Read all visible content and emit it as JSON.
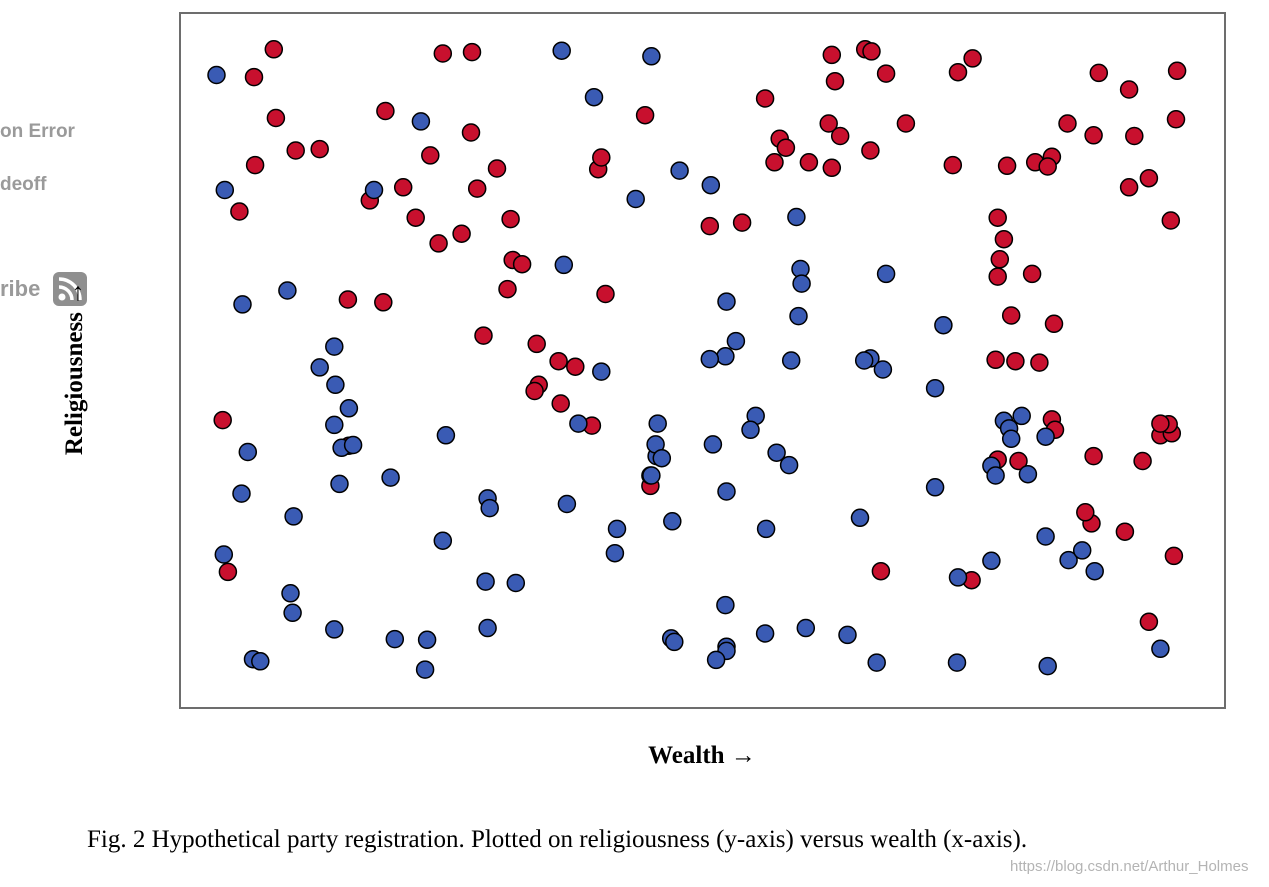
{
  "sidebar_fragments": {
    "line1": "on Error",
    "line2": "deoff",
    "line3": "ribe"
  },
  "caption": "Fig. 2 Hypothetical party registration. Plotted on religiousness (y-axis) versus wealth (x-axis).",
  "watermark": "https://blog.csdn.net/Arthur_Holmes",
  "colors": {
    "red": "#c8102e",
    "blue": "#3a5bb4",
    "edge": "#000000",
    "frame": "#6d6d6d"
  },
  "chart_data": {
    "type": "scatter",
    "title": "",
    "xlabel": "Wealth →",
    "ylabel": "Religiousness →",
    "xlim": [
      0,
      1
    ],
    "ylim": [
      0,
      1
    ],
    "grid": false,
    "legend": "none",
    "ticks": "none",
    "series": [
      {
        "color": "#c8102e",
        "points": [
          [
            0.089,
            0.949
          ],
          [
            0.251,
            0.943
          ],
          [
            0.279,
            0.945
          ],
          [
            0.07,
            0.909
          ],
          [
            0.091,
            0.85
          ],
          [
            0.11,
            0.803
          ],
          [
            0.133,
            0.805
          ],
          [
            0.071,
            0.782
          ],
          [
            0.056,
            0.715
          ],
          [
            0.196,
            0.86
          ],
          [
            0.239,
            0.796
          ],
          [
            0.278,
            0.829
          ],
          [
            0.303,
            0.777
          ],
          [
            0.213,
            0.75
          ],
          [
            0.181,
            0.731
          ],
          [
            0.225,
            0.706
          ],
          [
            0.284,
            0.748
          ],
          [
            0.269,
            0.683
          ],
          [
            0.316,
            0.704
          ],
          [
            0.247,
            0.669
          ],
          [
            0.318,
            0.645
          ],
          [
            0.327,
            0.639
          ],
          [
            0.313,
            0.603
          ],
          [
            0.16,
            0.588
          ],
          [
            0.194,
            0.584
          ],
          [
            0.29,
            0.536
          ],
          [
            0.341,
            0.524
          ],
          [
            0.362,
            0.499
          ],
          [
            0.378,
            0.491
          ],
          [
            0.343,
            0.465
          ],
          [
            0.339,
            0.456
          ],
          [
            0.364,
            0.438
          ],
          [
            0.394,
            0.406
          ],
          [
            0.04,
            0.414
          ],
          [
            0.161,
            0.377
          ],
          [
            0.045,
            0.195
          ],
          [
            0.4,
            0.776
          ],
          [
            0.403,
            0.793
          ],
          [
            0.407,
            0.596
          ],
          [
            0.445,
            0.854
          ],
          [
            0.507,
            0.694
          ],
          [
            0.538,
            0.699
          ],
          [
            0.56,
            0.878
          ],
          [
            0.574,
            0.82
          ],
          [
            0.58,
            0.807
          ],
          [
            0.569,
            0.786
          ],
          [
            0.602,
            0.786
          ],
          [
            0.624,
            0.941
          ],
          [
            0.627,
            0.903
          ],
          [
            0.621,
            0.842
          ],
          [
            0.632,
            0.824
          ],
          [
            0.624,
            0.778
          ],
          [
            0.656,
            0.949
          ],
          [
            0.662,
            0.946
          ],
          [
            0.676,
            0.914
          ],
          [
            0.661,
            0.803
          ],
          [
            0.695,
            0.842
          ],
          [
            0.745,
            0.916
          ],
          [
            0.759,
            0.936
          ],
          [
            0.74,
            0.782
          ],
          [
            0.792,
            0.781
          ],
          [
            0.819,
            0.786
          ],
          [
            0.835,
            0.794
          ],
          [
            0.831,
            0.78
          ],
          [
            0.85,
            0.842
          ],
          [
            0.875,
            0.825
          ],
          [
            0.88,
            0.915
          ],
          [
            0.909,
            0.891
          ],
          [
            0.955,
            0.918
          ],
          [
            0.954,
            0.848
          ],
          [
            0.914,
            0.824
          ],
          [
            0.909,
            0.75
          ],
          [
            0.928,
            0.763
          ],
          [
            0.949,
            0.702
          ],
          [
            0.783,
            0.706
          ],
          [
            0.789,
            0.675
          ],
          [
            0.785,
            0.646
          ],
          [
            0.783,
            0.621
          ],
          [
            0.816,
            0.625
          ],
          [
            0.796,
            0.565
          ],
          [
            0.837,
            0.553
          ],
          [
            0.781,
            0.501
          ],
          [
            0.823,
            0.497
          ],
          [
            0.8,
            0.499
          ],
          [
            0.835,
            0.415
          ],
          [
            0.838,
            0.4
          ],
          [
            0.875,
            0.362
          ],
          [
            0.922,
            0.355
          ],
          [
            0.939,
            0.392
          ],
          [
            0.95,
            0.395
          ],
          [
            0.947,
            0.408
          ],
          [
            0.939,
            0.409
          ],
          [
            0.873,
            0.265
          ],
          [
            0.867,
            0.281
          ],
          [
            0.905,
            0.253
          ],
          [
            0.952,
            0.218
          ],
          [
            0.928,
            0.123
          ],
          [
            0.45,
            0.319
          ],
          [
            0.671,
            0.196
          ],
          [
            0.758,
            0.183
          ],
          [
            0.783,
            0.357
          ],
          [
            0.803,
            0.355
          ]
        ]
      },
      {
        "color": "#3a5bb4",
        "points": [
          [
            0.034,
            0.912
          ],
          [
            0.042,
            0.746
          ],
          [
            0.059,
            0.581
          ],
          [
            0.064,
            0.368
          ],
          [
            0.058,
            0.308
          ],
          [
            0.041,
            0.22
          ],
          [
            0.102,
            0.601
          ],
          [
            0.108,
            0.275
          ],
          [
            0.133,
            0.49
          ],
          [
            0.147,
            0.52
          ],
          [
            0.148,
            0.465
          ],
          [
            0.161,
            0.431
          ],
          [
            0.147,
            0.407
          ],
          [
            0.154,
            0.374
          ],
          [
            0.165,
            0.378
          ],
          [
            0.152,
            0.322
          ],
          [
            0.185,
            0.746
          ],
          [
            0.23,
            0.845
          ],
          [
            0.201,
            0.331
          ],
          [
            0.105,
            0.164
          ],
          [
            0.107,
            0.136
          ],
          [
            0.147,
            0.112
          ],
          [
            0.069,
            0.069
          ],
          [
            0.076,
            0.066
          ],
          [
            0.205,
            0.098
          ],
          [
            0.236,
            0.097
          ],
          [
            0.234,
            0.054
          ],
          [
            0.251,
            0.24
          ],
          [
            0.254,
            0.392
          ],
          [
            0.294,
            0.301
          ],
          [
            0.296,
            0.287
          ],
          [
            0.292,
            0.181
          ],
          [
            0.321,
            0.179
          ],
          [
            0.294,
            0.114
          ],
          [
            0.365,
            0.947
          ],
          [
            0.396,
            0.88
          ],
          [
            0.367,
            0.638
          ],
          [
            0.403,
            0.484
          ],
          [
            0.381,
            0.409
          ],
          [
            0.37,
            0.293
          ],
          [
            0.418,
            0.257
          ],
          [
            0.416,
            0.222
          ],
          [
            0.436,
            0.733
          ],
          [
            0.451,
            0.939
          ],
          [
            0.478,
            0.774
          ],
          [
            0.508,
            0.753
          ],
          [
            0.523,
            0.585
          ],
          [
            0.522,
            0.506
          ],
          [
            0.507,
            0.502
          ],
          [
            0.51,
            0.379
          ],
          [
            0.532,
            0.528
          ],
          [
            0.45,
            0.334
          ],
          [
            0.456,
            0.362
          ],
          [
            0.455,
            0.379
          ],
          [
            0.457,
            0.409
          ],
          [
            0.461,
            0.359
          ],
          [
            0.471,
            0.268
          ],
          [
            0.451,
            0.334
          ],
          [
            0.551,
            0.42
          ],
          [
            0.571,
            0.367
          ],
          [
            0.583,
            0.349
          ],
          [
            0.59,
            0.707
          ],
          [
            0.594,
            0.632
          ],
          [
            0.595,
            0.611
          ],
          [
            0.592,
            0.564
          ],
          [
            0.661,
            0.503
          ],
          [
            0.676,
            0.625
          ],
          [
            0.655,
            0.5
          ],
          [
            0.673,
            0.487
          ],
          [
            0.561,
            0.257
          ],
          [
            0.585,
            0.5
          ],
          [
            0.523,
            0.311
          ],
          [
            0.522,
            0.147
          ],
          [
            0.546,
            0.4
          ],
          [
            0.651,
            0.273
          ],
          [
            0.47,
            0.099
          ],
          [
            0.473,
            0.094
          ],
          [
            0.523,
            0.087
          ],
          [
            0.523,
            0.081
          ],
          [
            0.513,
            0.068
          ],
          [
            0.56,
            0.106
          ],
          [
            0.599,
            0.114
          ],
          [
            0.639,
            0.104
          ],
          [
            0.667,
            0.064
          ],
          [
            0.723,
            0.46
          ],
          [
            0.723,
            0.317
          ],
          [
            0.731,
            0.551
          ],
          [
            0.789,
            0.413
          ],
          [
            0.794,
            0.402
          ],
          [
            0.796,
            0.387
          ],
          [
            0.806,
            0.42
          ],
          [
            0.829,
            0.39
          ],
          [
            0.777,
            0.348
          ],
          [
            0.781,
            0.334
          ],
          [
            0.812,
            0.336
          ],
          [
            0.829,
            0.246
          ],
          [
            0.777,
            0.211
          ],
          [
            0.745,
            0.187
          ],
          [
            0.851,
            0.212
          ],
          [
            0.864,
            0.226
          ],
          [
            0.876,
            0.196
          ],
          [
            0.744,
            0.064
          ],
          [
            0.831,
            0.059
          ],
          [
            0.939,
            0.084
          ]
        ]
      }
    ]
  }
}
